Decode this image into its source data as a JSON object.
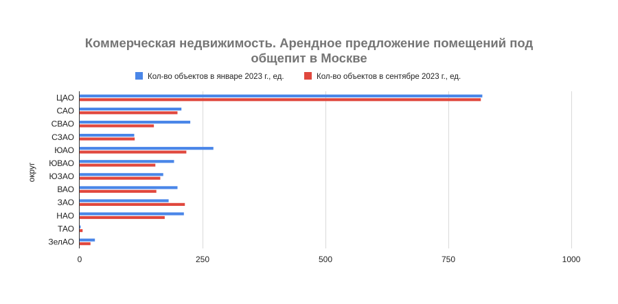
{
  "chart_data": {
    "type": "bar",
    "orientation": "horizontal",
    "title_lines": [
      "Коммерческая недвижимость. Арендное предложение  помещений под",
      "общепит в Москве"
    ],
    "ylabel": "округ",
    "xlabel": "",
    "categories": [
      "ЦАО",
      "САО",
      "СВАО",
      "СЗАО",
      "ЮАО",
      "ЮВАО",
      "ЮЗАО",
      "ВАО",
      "ЗАО",
      "НАО",
      "ТАО",
      "ЗелАО"
    ],
    "series": [
      {
        "name": "Кол-во объектов в январе 2023 г., ед.",
        "color": "#4a86e8",
        "values": [
          819,
          207,
          225,
          111,
          272,
          192,
          170,
          199,
          181,
          212,
          2,
          31
        ]
      },
      {
        "name": "Кол-во объектов в сентябре 2023 г., ед.",
        "color": "#e0483e",
        "values": [
          816,
          199,
          151,
          112,
          217,
          154,
          164,
          156,
          214,
          173,
          6,
          22
        ]
      }
    ],
    "xlim": [
      0,
      1000
    ],
    "xticks": [
      0,
      250,
      500,
      750,
      1000
    ],
    "grid": true,
    "legend_position": "top"
  }
}
